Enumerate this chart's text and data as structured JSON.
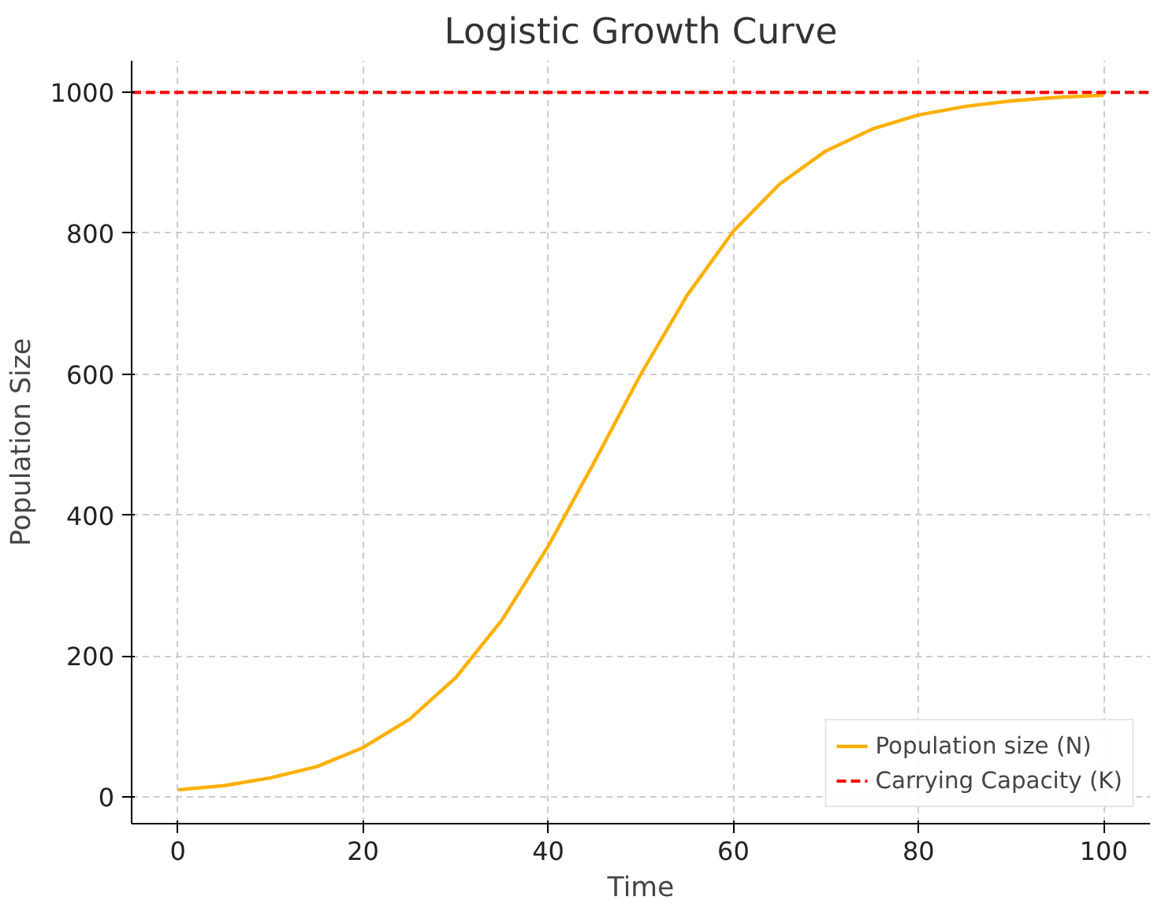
{
  "chart_data": {
    "type": "line",
    "title": "Logistic Growth Curve",
    "xlabel": "Time",
    "ylabel": "Population Size",
    "x": [
      0,
      5,
      10,
      15,
      20,
      25,
      30,
      35,
      40,
      45,
      50,
      55,
      60,
      65,
      70,
      75,
      80,
      85,
      90,
      95,
      100
    ],
    "series": [
      {
        "name": "Population size (N)",
        "color": "#ffb000",
        "values": [
          10,
          16,
          27,
          43,
          70,
          110,
          169,
          251,
          356,
          476,
          600,
          712,
          803,
          870,
          917,
          948,
          968,
          980,
          988,
          993,
          996
        ]
      }
    ],
    "ref_lines": [
      {
        "axis": "y",
        "value": 1000,
        "label": "Carrying Capacity (K)",
        "color": "#ff0000",
        "line_style": "dashed"
      }
    ],
    "xlim": [
      -5,
      105
    ],
    "ylim": [
      -38,
      1045
    ],
    "xticks": [
      0,
      20,
      40,
      60,
      80,
      100
    ],
    "yticks": [
      0,
      200,
      400,
      600,
      800,
      1000
    ],
    "grid": true,
    "legend": "bottom right",
    "line_style": "solid",
    "marker": "none"
  }
}
